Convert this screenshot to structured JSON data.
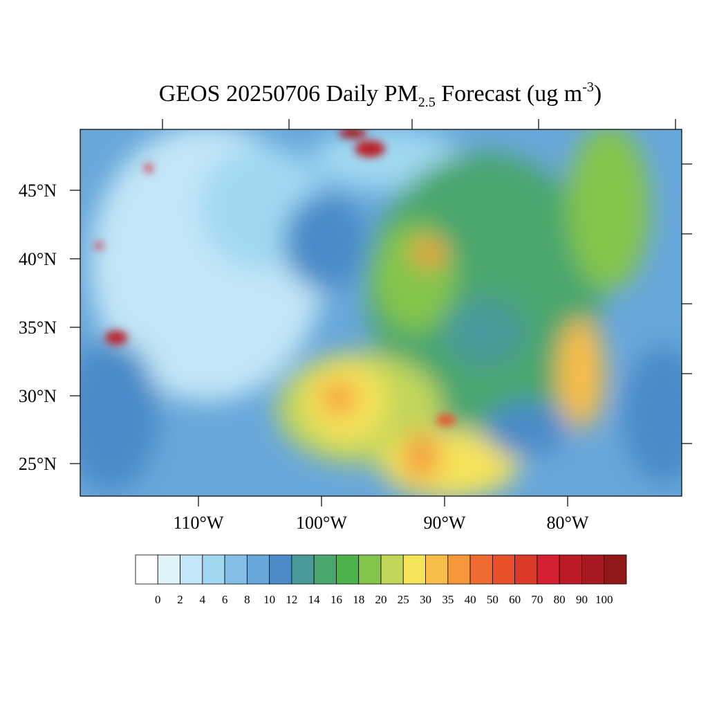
{
  "title": {
    "main": "GEOS 20250706 Daily PM",
    "sub": "2.5",
    "rest": " Forecast (ug m",
    "sup": "-3",
    "end": ")"
  },
  "lat_labels": [
    "45°N",
    "40°N",
    "35°N",
    "30°N",
    "25°N"
  ],
  "lon_labels": [
    "110°W",
    "100°W",
    "90°W",
    "80°W"
  ],
  "colorbar": {
    "colors": [
      "#ffffff",
      "#e0f3fb",
      "#c2e6f7",
      "#a0d8f2",
      "#86bfe6",
      "#68a7da",
      "#4a8bc8",
      "#4a9a9a",
      "#48a66e",
      "#4cb34a",
      "#84c54c",
      "#c2d65a",
      "#f5e35a",
      "#f7bd4a",
      "#f6973c",
      "#f06b30",
      "#e8502c",
      "#dc3a28",
      "#d42030",
      "#bc1c28",
      "#a81a22",
      "#901818"
    ],
    "labels": [
      0,
      2,
      4,
      6,
      8,
      10,
      12,
      14,
      16,
      18,
      20,
      25,
      30,
      35,
      40,
      50,
      60,
      70,
      80,
      90,
      100
    ]
  }
}
